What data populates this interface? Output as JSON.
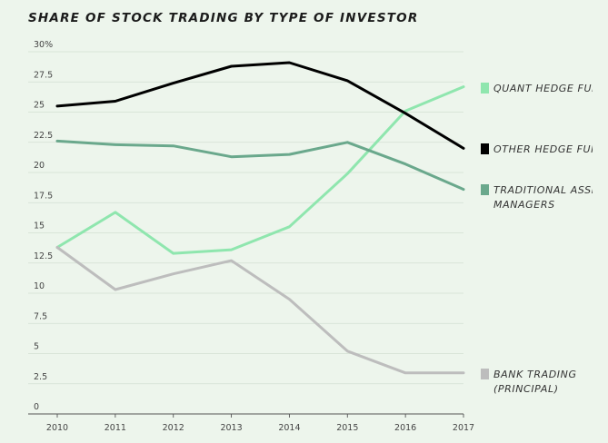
{
  "chart_data": {
    "type": "line",
    "title": "SHARE OF STOCK TRADING BY TYPE OF INVESTOR",
    "xlabel": "",
    "ylabel": "",
    "x": [
      2010,
      2011,
      2012,
      2013,
      2014,
      2015,
      2016,
      2017
    ],
    "ylim": [
      0,
      30
    ],
    "yticks": [
      {
        "value": 0,
        "label": "0"
      },
      {
        "value": 2.5,
        "label": "2.5"
      },
      {
        "value": 5,
        "label": "5"
      },
      {
        "value": 7.5,
        "label": "7.5"
      },
      {
        "value": 10,
        "label": "10"
      },
      {
        "value": 12.5,
        "label": "12.5"
      },
      {
        "value": 15,
        "label": "15"
      },
      {
        "value": 17.5,
        "label": "17.5"
      },
      {
        "value": 20,
        "label": "20"
      },
      {
        "value": 22.5,
        "label": "22.5"
      },
      {
        "value": 25,
        "label": "25"
      },
      {
        "value": 27.5,
        "label": "27.5"
      },
      {
        "value": 30,
        "label": "30%"
      }
    ],
    "grid": true,
    "series": [
      {
        "name": "QUANT HEDGE FUNDS",
        "legend_lines": [
          "QUANT HEDGE FUNDS"
        ],
        "color": "#8fe6ae",
        "values": [
          13.8,
          16.7,
          13.3,
          13.6,
          15.5,
          19.9,
          25.1,
          27.1
        ]
      },
      {
        "name": "OTHER HEDGE FUNDS",
        "legend_lines": [
          "OTHER HEDGE FUNDS"
        ],
        "color": "#000000",
        "values": [
          25.5,
          25.9,
          27.4,
          28.8,
          29.1,
          27.6,
          24.9,
          22.0
        ]
      },
      {
        "name": "TRADITIONAL ASSET MANAGERS",
        "legend_lines": [
          "TRADITIONAL ASSET",
          "MANAGERS"
        ],
        "color": "#6aa88c",
        "values": [
          22.6,
          22.3,
          22.2,
          21.3,
          21.5,
          22.5,
          20.7,
          18.6
        ]
      },
      {
        "name": "BANK TRADING (PRINCIPAL)",
        "legend_lines": [
          "BANK TRADING",
          "(PRINCIPAL)"
        ],
        "color": "#bdbdbd",
        "values": [
          13.8,
          10.3,
          11.6,
          12.7,
          9.5,
          5.2,
          3.4,
          3.4
        ]
      }
    ]
  }
}
